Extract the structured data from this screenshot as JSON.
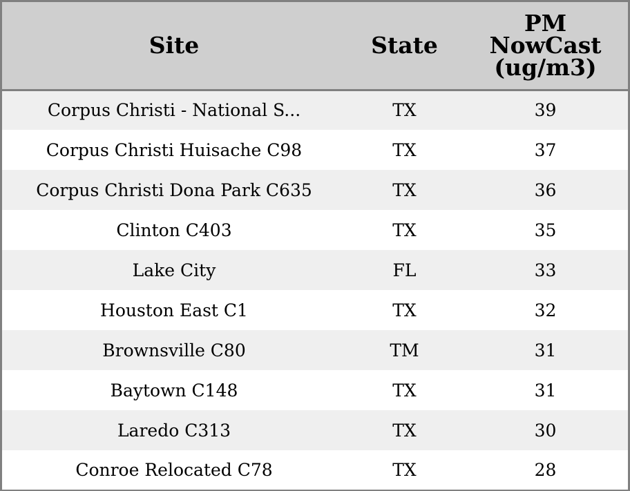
{
  "table": {
    "headers": {
      "site": "Site",
      "state": "State",
      "pm_lines": [
        "PM",
        "NowCast",
        "(ug/m3)"
      ]
    },
    "rows": [
      {
        "site": "Corpus Christi - National S...",
        "state": "TX",
        "pm": "39"
      },
      {
        "site": "Corpus Christi Huisache C98",
        "state": "TX",
        "pm": "37"
      },
      {
        "site": "Corpus Christi Dona Park C635",
        "state": "TX",
        "pm": "36"
      },
      {
        "site": "Clinton C403",
        "state": "TX",
        "pm": "35"
      },
      {
        "site": "Lake City",
        "state": "FL",
        "pm": "33"
      },
      {
        "site": "Houston East C1",
        "state": "TX",
        "pm": "32"
      },
      {
        "site": "Brownsville C80",
        "state": "TM",
        "pm": "31"
      },
      {
        "site": "Baytown C148",
        "state": "TX",
        "pm": "31"
      },
      {
        "site": "Laredo C313",
        "state": "TX",
        "pm": "30"
      },
      {
        "site": "Conroe Relocated C78",
        "state": "TX",
        "pm": "28"
      }
    ]
  },
  "colors": {
    "header_background": "#cfcfcf",
    "row_stripe": "#efefef",
    "row_plain": "#ffffff",
    "border": "#808080"
  }
}
